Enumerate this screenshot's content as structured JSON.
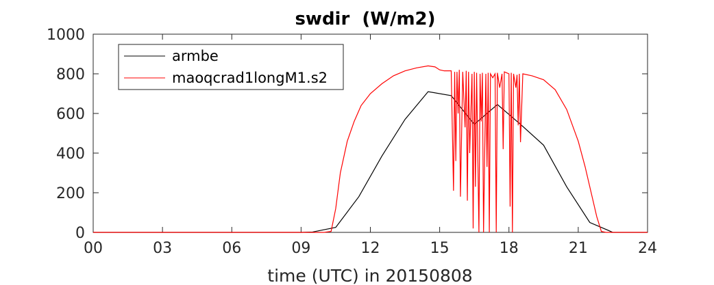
{
  "chart_data": {
    "type": "line",
    "title": "swdir  (W/m2)",
    "xlabel": "time (UTC) in 20150808",
    "ylabel": "",
    "xlim": [
      0,
      24
    ],
    "ylim": [
      0,
      1000
    ],
    "x_ticks": [
      "00",
      "03",
      "06",
      "09",
      "12",
      "15",
      "18",
      "21",
      "24"
    ],
    "y_ticks": [
      "0",
      "200",
      "400",
      "600",
      "800",
      "1000"
    ],
    "grid": false,
    "legend_position": "top-left",
    "series": [
      {
        "name": "armbe",
        "color": "#000000",
        "x": [
          0,
          1,
          2,
          3,
          4,
          5,
          6,
          7,
          8,
          9,
          9.5,
          10.5,
          11.5,
          12.5,
          13.5,
          14.5,
          15.5,
          16.5,
          17.5,
          18.5,
          19.5,
          20.5,
          21.5,
          22.5,
          23,
          24
        ],
        "y": [
          0,
          0,
          0,
          0,
          0,
          0,
          0,
          0,
          0,
          0,
          2,
          25,
          180,
          385,
          570,
          710,
          690,
          545,
          645,
          545,
          440,
          230,
          50,
          0,
          0,
          0
        ]
      },
      {
        "name": "maoqcrad1longM1.s2",
        "color": "#ff0000",
        "x": [
          0,
          10.0,
          10.3,
          10.5,
          10.7,
          11.0,
          11.3,
          11.6,
          12.0,
          12.5,
          13.0,
          13.5,
          14.0,
          14.5,
          14.8,
          15.0,
          15.2,
          15.5,
          15.6,
          15.65,
          15.7,
          15.75,
          15.8,
          15.85,
          15.9,
          16.0,
          16.1,
          16.15,
          16.2,
          16.25,
          16.3,
          16.4,
          16.45,
          16.5,
          16.55,
          16.6,
          16.7,
          16.75,
          16.8,
          16.85,
          16.9,
          17.0,
          17.05,
          17.1,
          17.15,
          17.2,
          17.3,
          17.4,
          17.45,
          17.5,
          17.6,
          17.7,
          17.75,
          17.8,
          17.9,
          18.0,
          18.05,
          18.1,
          18.15,
          18.2,
          18.3,
          18.35,
          18.4,
          18.45,
          18.5,
          18.6,
          19.0,
          19.5,
          20.0,
          20.5,
          21.0,
          21.3,
          21.6,
          21.8,
          22.0,
          22.2,
          24
        ],
        "y": [
          0,
          0,
          5,
          120,
          300,
          460,
          560,
          640,
          700,
          750,
          790,
          815,
          830,
          840,
          835,
          820,
          815,
          815,
          210,
          810,
          360,
          810,
          600,
          820,
          180,
          810,
          530,
          815,
          160,
          810,
          400,
          800,
          20,
          810,
          230,
          805,
          0,
          800,
          560,
          805,
          0,
          800,
          330,
          805,
          0,
          800,
          780,
          800,
          0,
          805,
          730,
          800,
          420,
          810,
          805,
          800,
          130,
          805,
          0,
          800,
          730,
          795,
          540,
          800,
          455,
          800,
          790,
          770,
          720,
          620,
          460,
          330,
          180,
          80,
          5,
          0,
          0
        ]
      }
    ]
  }
}
